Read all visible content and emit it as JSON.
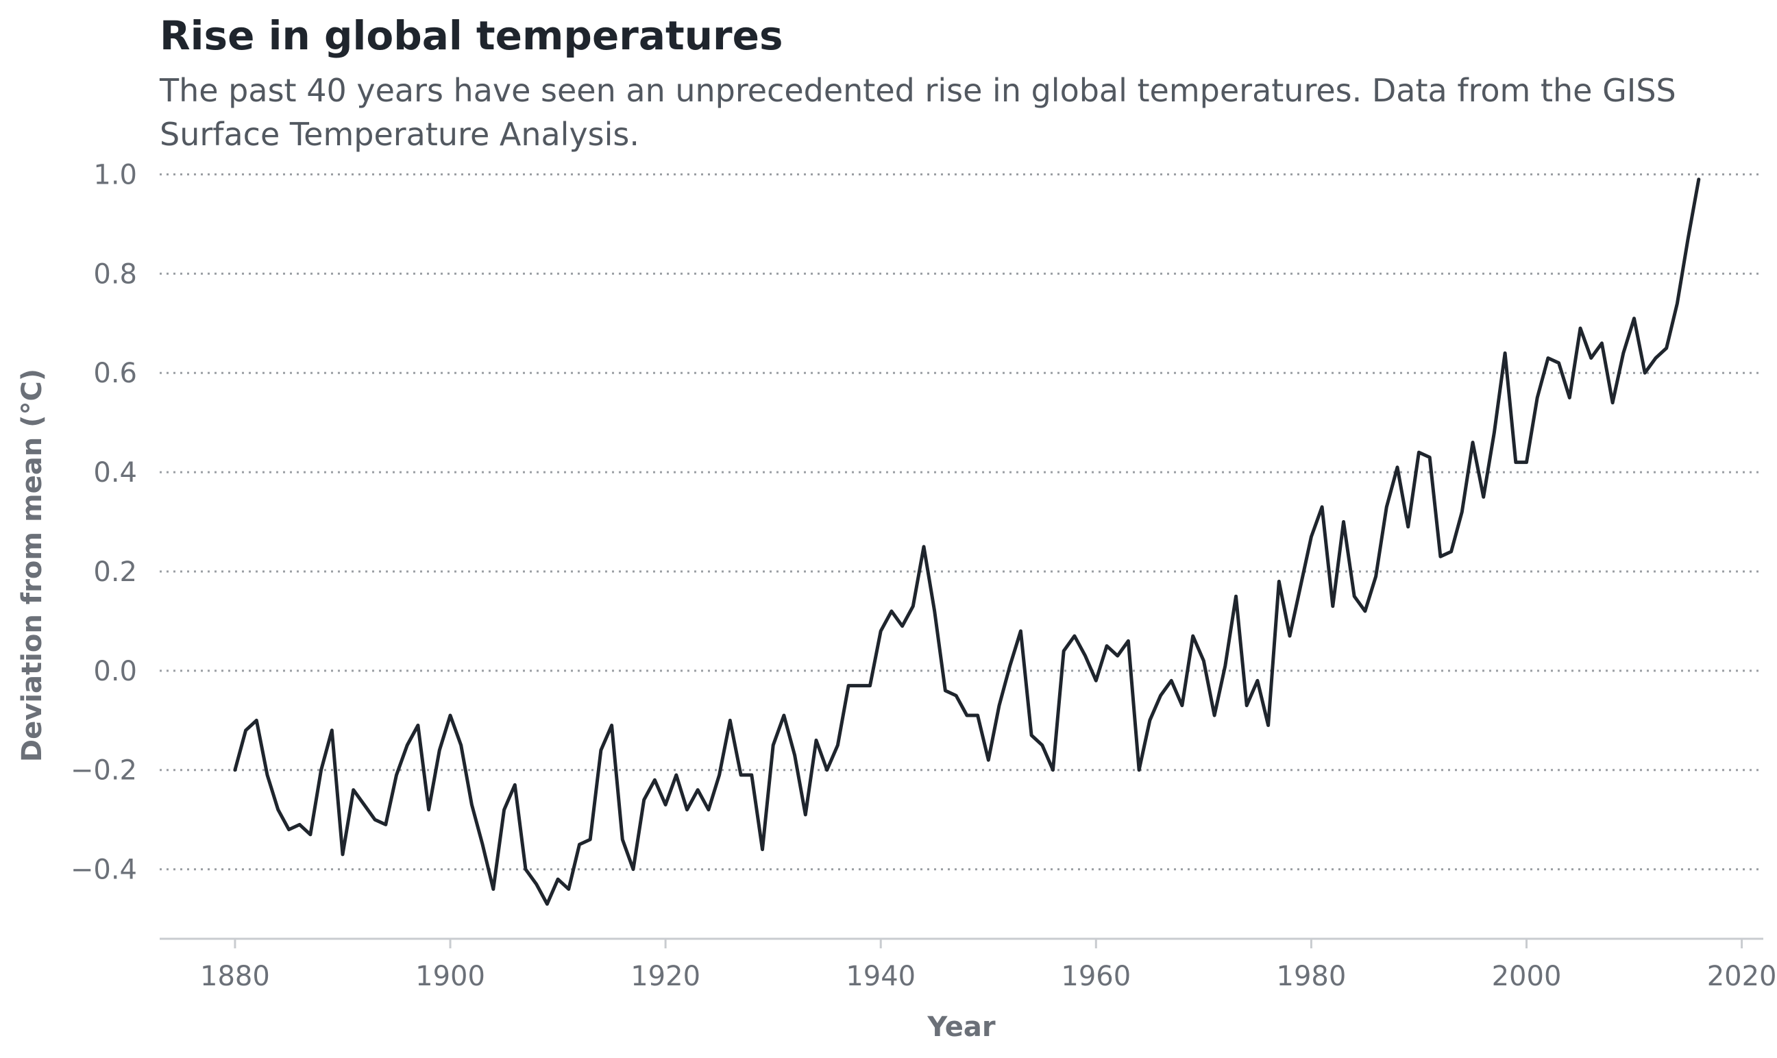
{
  "chart_data": {
    "type": "line",
    "title": "Rise in global temperatures",
    "subtitle": "The past 40 years have seen an unprecedented rise in global temperatures. Data from the GISS Surface Temperature Analysis.",
    "xlabel": "Year",
    "ylabel": "Deviation from mean (°C)",
    "xlim": [
      1873,
      2022
    ],
    "ylim": [
      -0.54,
      1.02
    ],
    "xticks": [
      1880,
      1900,
      1920,
      1940,
      1960,
      1980,
      2000,
      2020
    ],
    "xtick_labels": [
      "1880",
      "1900",
      "1920",
      "1940",
      "1960",
      "1980",
      "2000",
      "2020"
    ],
    "yticks": [
      1.0,
      0.8,
      0.6,
      0.4,
      0.2,
      0.0,
      -0.2,
      -0.4
    ],
    "ytick_labels": [
      "1.0",
      "0.8",
      "0.6",
      "0.4",
      "0.2",
      "0.0",
      "−0.2",
      "−0.4"
    ],
    "grid": "horizontal-dotted",
    "legend": "none",
    "colors": {
      "line": "#1f252d",
      "grid": "#9a9ea3",
      "tick_text": "#6b7078",
      "axis_label": "#6b7078",
      "axis_line": "#c9ccd0"
    },
    "x": [
      1880,
      1881,
      1882,
      1883,
      1884,
      1885,
      1886,
      1887,
      1888,
      1889,
      1890,
      1891,
      1892,
      1893,
      1894,
      1895,
      1896,
      1897,
      1898,
      1899,
      1900,
      1901,
      1902,
      1903,
      1904,
      1905,
      1906,
      1907,
      1908,
      1909,
      1910,
      1911,
      1912,
      1913,
      1914,
      1915,
      1916,
      1917,
      1918,
      1919,
      1920,
      1921,
      1922,
      1923,
      1924,
      1925,
      1926,
      1927,
      1928,
      1929,
      1930,
      1931,
      1932,
      1933,
      1934,
      1935,
      1936,
      1937,
      1938,
      1939,
      1940,
      1941,
      1942,
      1943,
      1944,
      1945,
      1946,
      1947,
      1948,
      1949,
      1950,
      1951,
      1952,
      1953,
      1954,
      1955,
      1956,
      1957,
      1958,
      1959,
      1960,
      1961,
      1962,
      1963,
      1964,
      1965,
      1966,
      1967,
      1968,
      1969,
      1970,
      1971,
      1972,
      1973,
      1974,
      1975,
      1976,
      1977,
      1978,
      1979,
      1980,
      1981,
      1982,
      1983,
      1984,
      1985,
      1986,
      1987,
      1988,
      1989,
      1990,
      1991,
      1992,
      1993,
      1994,
      1995,
      1996,
      1997,
      1998,
      1999,
      2000,
      2001,
      2002,
      2003,
      2004,
      2005,
      2006,
      2007,
      2008,
      2009,
      2010,
      2011,
      2012,
      2013,
      2014,
      2015,
      2016
    ],
    "values": [
      -0.2,
      -0.12,
      -0.1,
      -0.21,
      -0.28,
      -0.32,
      -0.31,
      -0.33,
      -0.2,
      -0.12,
      -0.37,
      -0.24,
      -0.27,
      -0.3,
      -0.31,
      -0.21,
      -0.15,
      -0.11,
      -0.28,
      -0.16,
      -0.09,
      -0.15,
      -0.27,
      -0.35,
      -0.44,
      -0.28,
      -0.23,
      -0.4,
      -0.43,
      -0.47,
      -0.42,
      -0.44,
      -0.35,
      -0.34,
      -0.16,
      -0.11,
      -0.34,
      -0.4,
      -0.26,
      -0.22,
      -0.27,
      -0.21,
      -0.28,
      -0.24,
      -0.28,
      -0.21,
      -0.1,
      -0.21,
      -0.21,
      -0.36,
      -0.15,
      -0.09,
      -0.17,
      -0.29,
      -0.14,
      -0.2,
      -0.15,
      -0.03,
      -0.03,
      -0.03,
      0.08,
      0.12,
      0.09,
      0.13,
      0.25,
      0.12,
      -0.04,
      -0.05,
      -0.09,
      -0.09,
      -0.18,
      -0.07,
      0.01,
      0.08,
      -0.13,
      -0.15,
      -0.2,
      0.04,
      0.07,
      0.03,
      -0.02,
      0.05,
      0.03,
      0.06,
      -0.2,
      -0.1,
      -0.05,
      -0.02,
      -0.07,
      0.07,
      0.02,
      -0.09,
      0.01,
      0.15,
      -0.07,
      -0.02,
      -0.11,
      0.18,
      0.07,
      0.17,
      0.27,
      0.33,
      0.13,
      0.3,
      0.15,
      0.12,
      0.19,
      0.33,
      0.41,
      0.29,
      0.44,
      0.43,
      0.23,
      0.24,
      0.32,
      0.46,
      0.35,
      0.48,
      0.64,
      0.42,
      0.42,
      0.55,
      0.63,
      0.62,
      0.55,
      0.69,
      0.63,
      0.66,
      0.54,
      0.64,
      0.71,
      0.6,
      0.63,
      0.65,
      0.74,
      0.87,
      0.99
    ]
  }
}
